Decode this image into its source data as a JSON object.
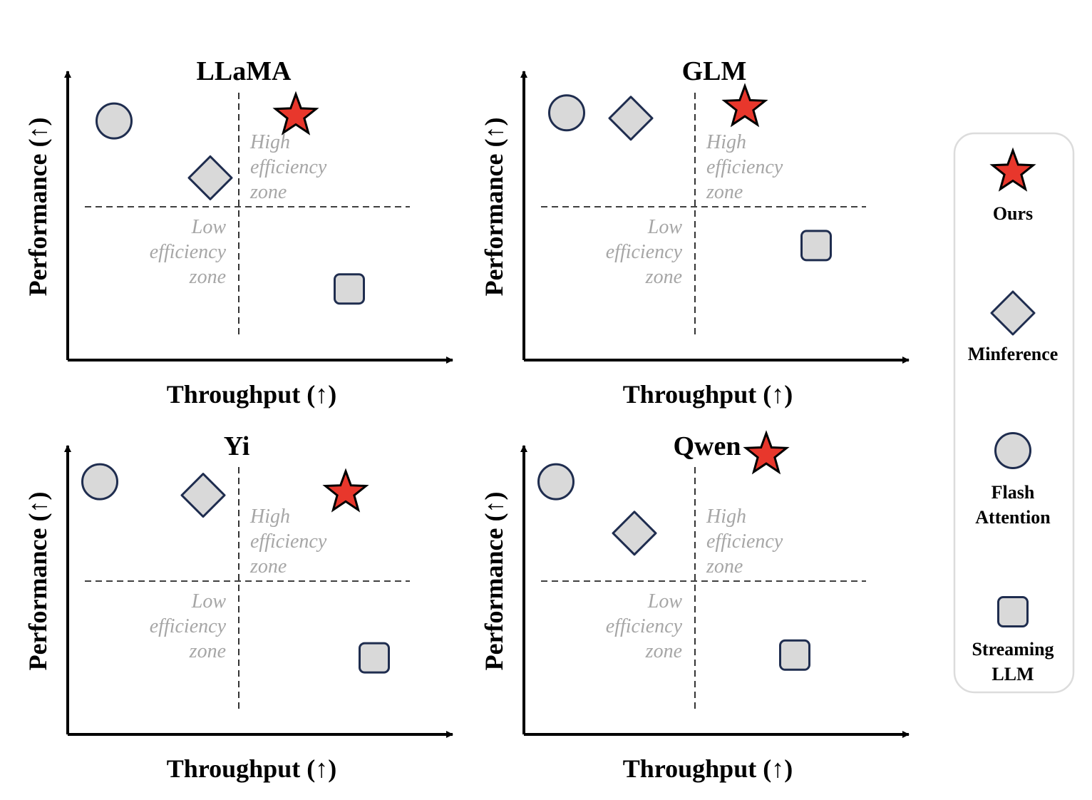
{
  "chart_data": [
    {
      "type": "scatter",
      "title": "LLaMA",
      "xlabel": "Throughput (↑)",
      "ylabel": "Performance (↑)",
      "zone_labels": {
        "high": [
          "High",
          "efficiency",
          "zone"
        ],
        "low": [
          "Low",
          "efficiency",
          "zone"
        ]
      },
      "points": [
        {
          "method": "Ours",
          "x": 0.64,
          "y": 0.85
        },
        {
          "method": "Minference",
          "x": 0.4,
          "y": 0.62
        },
        {
          "method": "Flash Attention",
          "x": 0.13,
          "y": 0.83
        },
        {
          "method": "Streaming LLM",
          "x": 0.79,
          "y": 0.21
        }
      ]
    },
    {
      "type": "scatter",
      "title": "GLM",
      "xlabel": "Throughput (↑)",
      "ylabel": "Performance (↑)",
      "zone_labels": {
        "high": [
          "High",
          "efficiency",
          "zone"
        ],
        "low": [
          "Low",
          "efficiency",
          "zone"
        ]
      },
      "points": [
        {
          "method": "Ours",
          "x": 0.62,
          "y": 0.88
        },
        {
          "method": "Minference",
          "x": 0.3,
          "y": 0.84
        },
        {
          "method": "Flash Attention",
          "x": 0.12,
          "y": 0.86
        },
        {
          "method": "Streaming LLM",
          "x": 0.82,
          "y": 0.37
        }
      ]
    },
    {
      "type": "scatter",
      "title": "Yi",
      "xlabel": "Throughput (↑)",
      "ylabel": "Performance (↑)",
      "zone_labels": {
        "high": [
          "High",
          "efficiency",
          "zone"
        ],
        "low": [
          "Low",
          "efficiency",
          "zone"
        ]
      },
      "points": [
        {
          "method": "Ours",
          "x": 0.78,
          "y": 0.84
        },
        {
          "method": "Minference",
          "x": 0.38,
          "y": 0.83
        },
        {
          "method": "Flash Attention",
          "x": 0.09,
          "y": 0.88
        },
        {
          "method": "Streaming LLM",
          "x": 0.86,
          "y": 0.23
        }
      ]
    },
    {
      "type": "scatter",
      "title": "Qwen",
      "xlabel": "Throughput (↑)",
      "ylabel": "Performance (↑)",
      "zone_labels": {
        "high": [
          "High",
          "efficiency",
          "zone"
        ],
        "low": [
          "Low",
          "efficiency",
          "zone"
        ]
      },
      "points": [
        {
          "method": "Ours",
          "x": 0.68,
          "y": 0.98
        },
        {
          "method": "Minference",
          "x": 0.31,
          "y": 0.69
        },
        {
          "method": "Flash Attention",
          "x": 0.09,
          "y": 0.88
        },
        {
          "method": "Streaming LLM",
          "x": 0.76,
          "y": 0.24
        }
      ]
    }
  ],
  "legend": [
    {
      "method": "Ours",
      "lines": [
        "Ours"
      ]
    },
    {
      "method": "Minference",
      "lines": [
        "Minference"
      ]
    },
    {
      "method": "Flash Attention",
      "lines": [
        "Flash",
        "Attention"
      ]
    },
    {
      "method": "Streaming LLM",
      "lines": [
        "Streaming",
        "LLM"
      ]
    }
  ],
  "markers": {
    "Ours": {
      "shape": "star",
      "fill": "#e8372c",
      "stroke": "#000000"
    },
    "Minference": {
      "shape": "diamond",
      "fill": "#d9d9d9",
      "stroke": "#1f2d4f"
    },
    "Flash Attention": {
      "shape": "circle",
      "fill": "#d9d9d9",
      "stroke": "#1f2d4f"
    },
    "Streaming LLM": {
      "shape": "rounded-square",
      "fill": "#d9d9d9",
      "stroke": "#1f2d4f"
    }
  },
  "colors": {
    "axis": "#000000",
    "zone_text": "#a6a6a6",
    "legend_border": "#dcdcdc"
  }
}
